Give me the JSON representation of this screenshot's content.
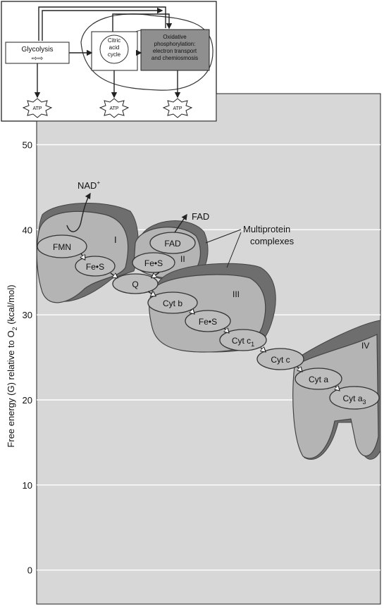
{
  "overview": {
    "glycolysis": "Glycolysis",
    "citric_acid": [
      "Citric",
      "acid",
      "cycle"
    ],
    "oxphos": [
      "Oxidative",
      "phosphorylation:",
      "electron transport",
      "and chemiosmosis"
    ],
    "atp": "ATP"
  },
  "chart_data": {
    "type": "diagram",
    "ylabel": "Free energy (G) relative to O",
    "ylabel_sub": "2",
    "ylabel_unit": " (kcal/mol)",
    "yticks": [
      0,
      10,
      20,
      30,
      40,
      50
    ],
    "ylim": [
      -4,
      56
    ]
  },
  "labels": {
    "nad": "NAD",
    "nad_sup": "+",
    "fad_out": "FAD",
    "multiprotein": [
      "Multiprotein",
      "complexes"
    ],
    "complex_I": "I",
    "complex_II": "II",
    "complex_III": "III",
    "complex_IV": "IV"
  },
  "carriers": {
    "fmn": "FMN",
    "fes1": "Fe•S",
    "fad": "FAD",
    "fes2": "Fe•S",
    "q": "Q",
    "cytb": "Cyt b",
    "fes3": "Fe•S",
    "cytc1": "Cyt c",
    "cytc1_sub": "1",
    "cytc": "Cyt c",
    "cyta": "Cyt a",
    "cyta3": "Cyt a",
    "cyta3_sub": "3"
  }
}
